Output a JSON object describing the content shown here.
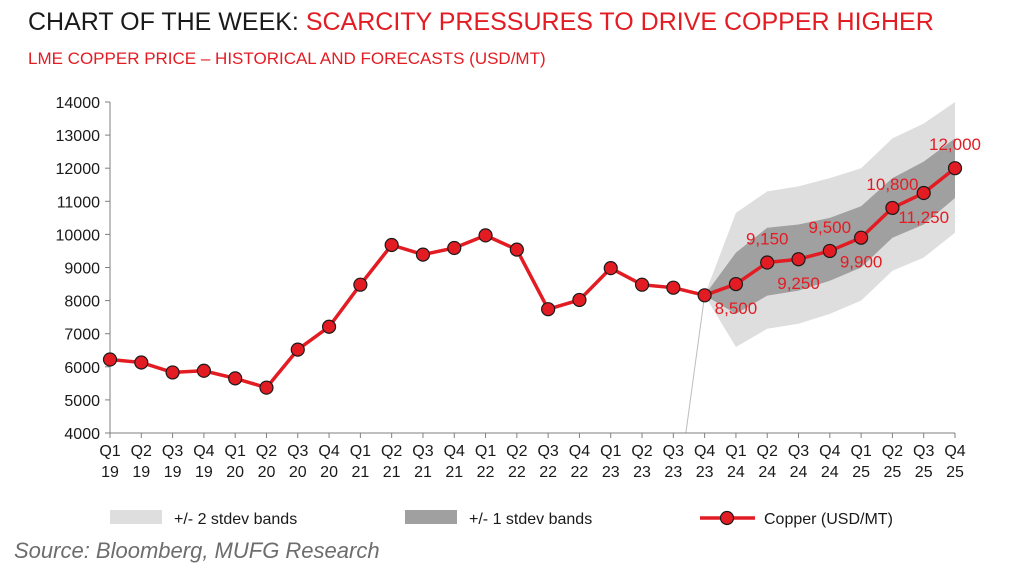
{
  "header": {
    "title_prefix": "CHART OF THE WEEK: ",
    "title_accent": "SCARCITY PRESSURES TO DRIVE COPPER HIGHER",
    "subtitle": "LME COPPER PRICE – HISTORICAL AND FORECASTS (USD/MT)"
  },
  "footer": {
    "source": "Source: Bloomberg,  MUFG Research"
  },
  "chart_data": {
    "type": "line",
    "title": "LME COPPER PRICE – HISTORICAL AND FORECASTS (USD/MT)",
    "ylim": [
      4000,
      14000
    ],
    "yticks": [
      "4000",
      "5000",
      "6000",
      "7000",
      "8000",
      "9000",
      "10000",
      "11000",
      "12000",
      "13000",
      "14000"
    ],
    "categories": [
      [
        "Q1",
        "19"
      ],
      [
        "Q2",
        "19"
      ],
      [
        "Q3",
        "19"
      ],
      [
        "Q4",
        "19"
      ],
      [
        "Q1",
        "20"
      ],
      [
        "Q2",
        "20"
      ],
      [
        "Q3",
        "20"
      ],
      [
        "Q4",
        "20"
      ],
      [
        "Q1",
        "21"
      ],
      [
        "Q2",
        "21"
      ],
      [
        "Q3",
        "21"
      ],
      [
        "Q4",
        "21"
      ],
      [
        "Q1",
        "22"
      ],
      [
        "Q2",
        "22"
      ],
      [
        "Q3",
        "22"
      ],
      [
        "Q4",
        "22"
      ],
      [
        "Q1",
        "23"
      ],
      [
        "Q2",
        "23"
      ],
      [
        "Q3",
        "23"
      ],
      [
        "Q4",
        "23"
      ],
      [
        "Q1",
        "24"
      ],
      [
        "Q2",
        "24"
      ],
      [
        "Q3",
        "24"
      ],
      [
        "Q4",
        "24"
      ],
      [
        "Q1",
        "25"
      ],
      [
        "Q2",
        "25"
      ],
      [
        "Q3",
        "25"
      ],
      [
        "Q4",
        "25"
      ]
    ],
    "series": [
      {
        "name": "Copper (USD/MT)",
        "color": "#e31c23",
        "values": [
          6220,
          6130,
          5830,
          5880,
          5650,
          5370,
          6520,
          7210,
          8480,
          9680,
          9390,
          9590,
          9970,
          9540,
          7740,
          8020,
          8980,
          8480,
          8390,
          8160,
          8500,
          9150,
          9250,
          9500,
          9900,
          10800,
          11250,
          12000
        ]
      }
    ],
    "bands": [
      {
        "name": "+/- 2 stdev bands",
        "color": "#dedede",
        "x_start": 19,
        "lower": [
          8160,
          6600,
          7150,
          7300,
          7600,
          8000,
          8900,
          9300,
          10050
        ],
        "upper": [
          8160,
          10650,
          11300,
          11450,
          11700,
          12000,
          12900,
          13350,
          14000
        ]
      },
      {
        "name": "+/- 1 stdev bands",
        "color": "#a0a0a0",
        "x_start": 19,
        "lower": [
          8160,
          7600,
          8150,
          8300,
          8600,
          9000,
          9900,
          10300,
          11100
        ],
        "upper": [
          8160,
          9450,
          10200,
          10300,
          10500,
          10850,
          11700,
          12200,
          12900
        ]
      }
    ],
    "data_labels": [
      {
        "index": 20,
        "text": "8,500",
        "position": "below"
      },
      {
        "index": 21,
        "text": "9,150",
        "position": "above"
      },
      {
        "index": 22,
        "text": "9,250",
        "position": "below"
      },
      {
        "index": 23,
        "text": "9,500",
        "position": "above"
      },
      {
        "index": 24,
        "text": "9,900",
        "position": "below"
      },
      {
        "index": 25,
        "text": "10,800",
        "position": "above"
      },
      {
        "index": 26,
        "text": "11,250",
        "position": "below"
      },
      {
        "index": 27,
        "text": "12,000",
        "position": "above"
      }
    ],
    "legend": [
      {
        "key": "band2",
        "label": "+/- 2 stdev bands"
      },
      {
        "key": "band1",
        "label": "+/- 1 stdev bands"
      },
      {
        "key": "line",
        "label": "Copper (USD/MT)"
      }
    ],
    "legend_position": "bottom",
    "grid": false
  }
}
